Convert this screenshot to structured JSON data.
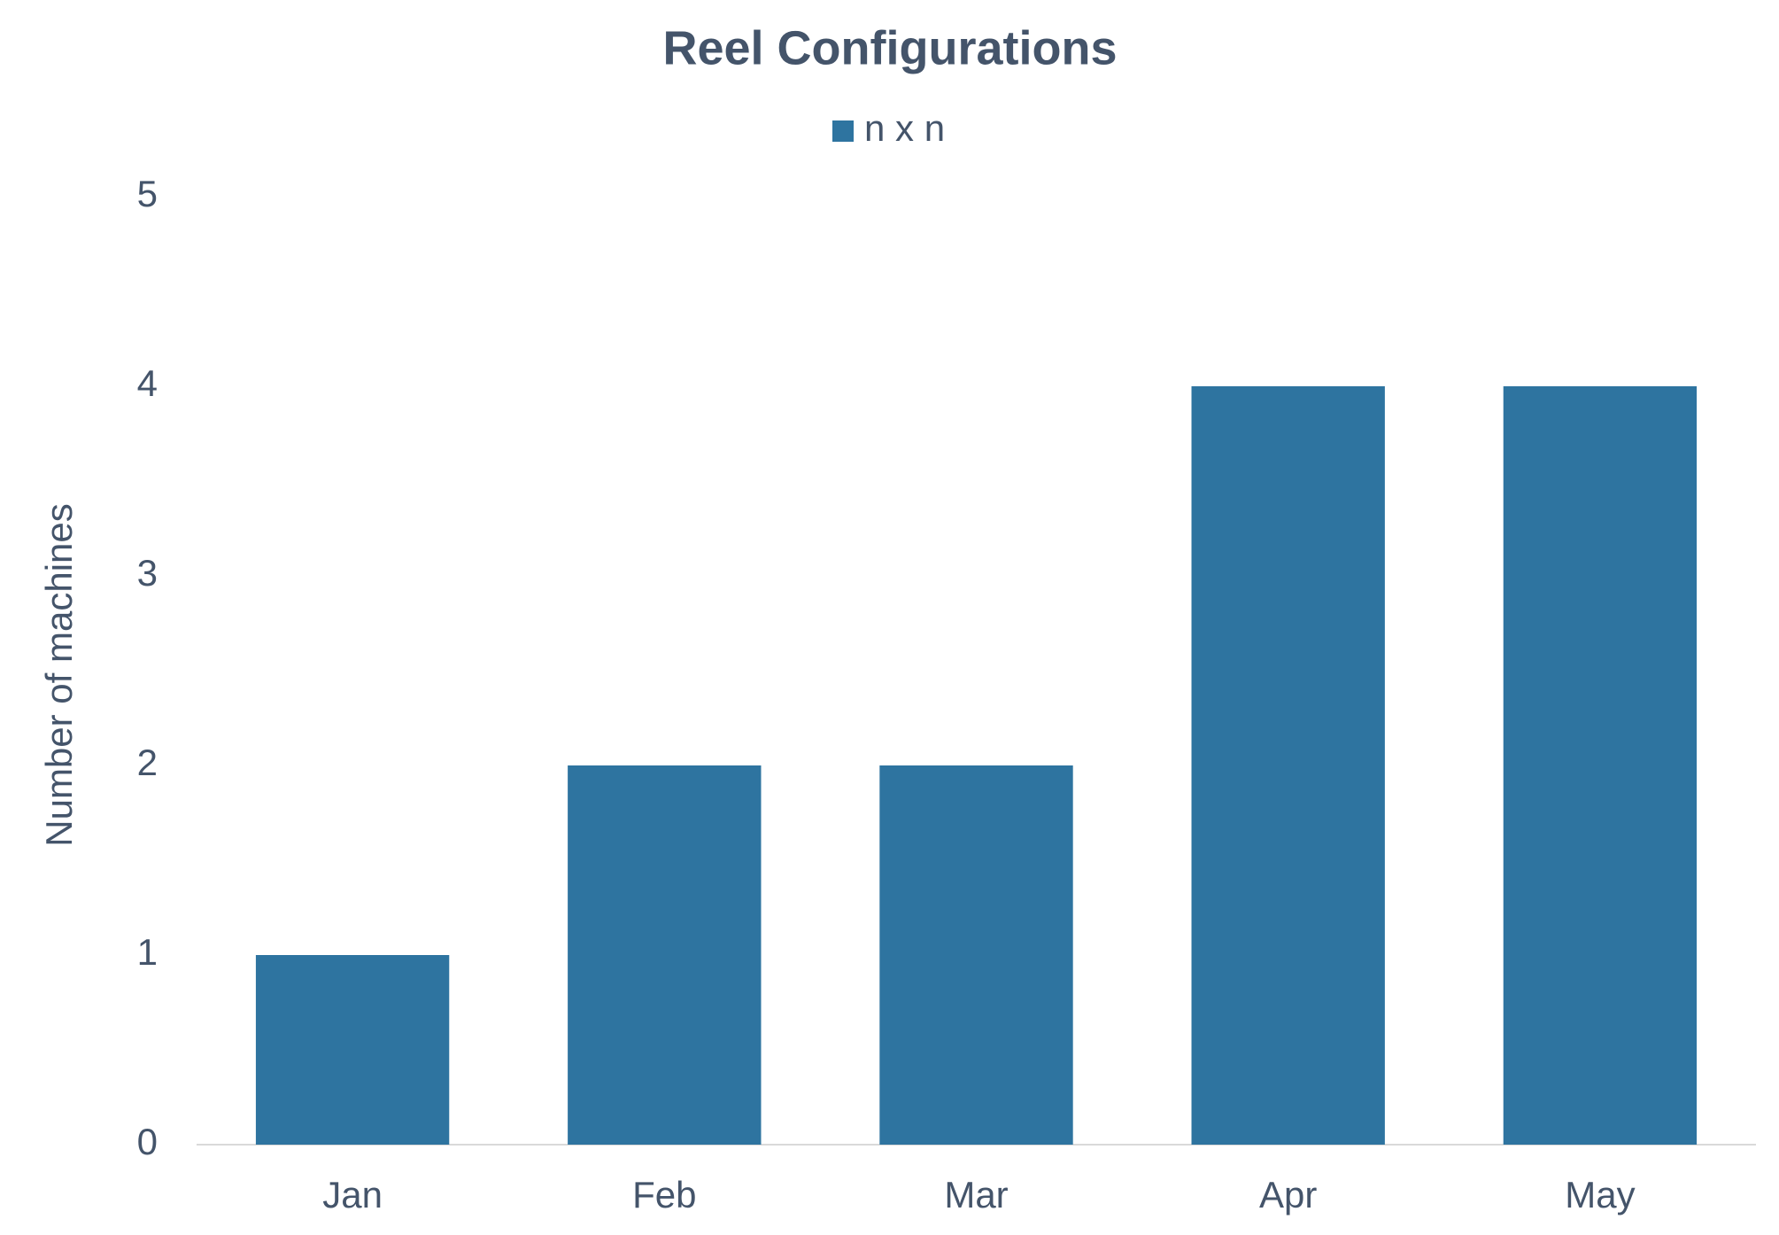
{
  "chart_data": {
    "type": "bar",
    "title": "Reel Configurations",
    "y_label": "Number of machines",
    "categories": [
      "Jan",
      "Feb",
      "Mar",
      "Apr",
      "May"
    ],
    "series": [
      {
        "name": "n x n",
        "color": "#2e74a0",
        "values": [
          1,
          2,
          2,
          4,
          4
        ]
      }
    ],
    "ylim": [
      0,
      5
    ],
    "yticks": [
      0,
      1,
      2,
      3,
      4,
      5
    ],
    "grid": false,
    "legend": "top"
  }
}
